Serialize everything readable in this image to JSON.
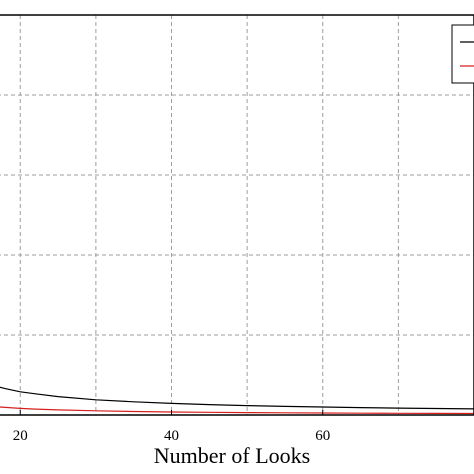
{
  "chart_data": {
    "type": "line",
    "title": "",
    "xlabel": "Number of Looks",
    "ylabel": "",
    "xlim": [
      16,
      80
    ],
    "ylim": [
      0,
      5
    ],
    "x_ticks": [
      20,
      40,
      60
    ],
    "grid": true,
    "legend_position": "top-right",
    "series": [
      {
        "color": "#000000",
        "x": [
          16,
          18,
          20,
          22,
          25,
          30,
          35,
          40,
          45,
          50,
          55,
          60,
          65,
          70,
          75,
          80
        ],
        "y": [
          0.38,
          0.33,
          0.29,
          0.265,
          0.23,
          0.19,
          0.165,
          0.145,
          0.13,
          0.118,
          0.108,
          0.1,
          0.092,
          0.086,
          0.081,
          0.076
        ]
      },
      {
        "color": "#d62020",
        "x": [
          16,
          18,
          20,
          22,
          25,
          30,
          35,
          40,
          45,
          50,
          55,
          60,
          65,
          70,
          75,
          80
        ],
        "y": [
          0.11,
          0.095,
          0.083,
          0.074,
          0.064,
          0.052,
          0.044,
          0.038,
          0.034,
          0.03,
          0.027,
          0.025,
          0.023,
          0.021,
          0.02,
          0.019
        ]
      }
    ]
  }
}
